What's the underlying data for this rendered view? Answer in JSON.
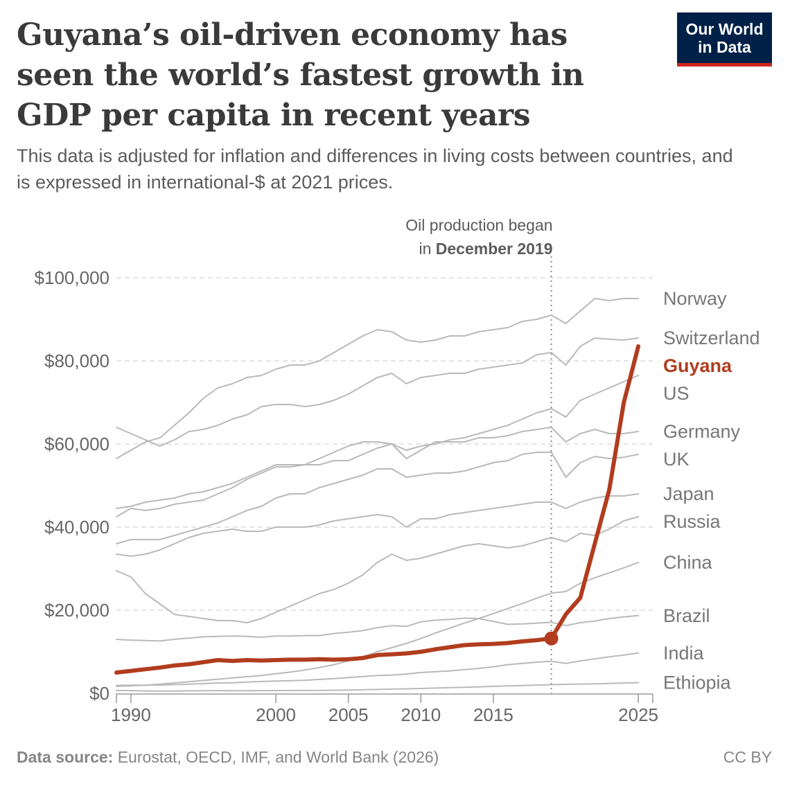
{
  "header": {
    "title": "Guyana’s oil-driven economy has seen the world’s fastest growth in GDP per capita in recent years",
    "subtitle": "This data is adjusted for inflation and differences in living costs between countries, and is expressed in international-$ at 2021 prices.",
    "logo_line1": "Our World",
    "logo_line2": "in Data"
  },
  "colors": {
    "highlight": "#b13d1e",
    "series": "#b9b9b9",
    "logo_bg": "#002147",
    "logo_bar": "#ce261e"
  },
  "footer": {
    "source_label": "Data source:",
    "source_text": "Eurostat, OECD, IMF, and World Bank (2026)",
    "license": "CC BY"
  },
  "chart_data": {
    "type": "line",
    "xlim": [
      1989,
      2026
    ],
    "ylim": [
      0,
      100000
    ],
    "x_ticks": [
      1990,
      2000,
      2005,
      2010,
      2015,
      2025
    ],
    "y_ticks": [
      0,
      20000,
      40000,
      60000,
      80000,
      100000
    ],
    "y_tick_labels": [
      "$0",
      "$20,000",
      "$40,000",
      "$60,000",
      "$80,000",
      "$100,000"
    ],
    "grid": "horizontal dashed",
    "annotation": {
      "x": 2019,
      "text_line1": "Oil production began",
      "text_line2_prefix": "in ",
      "text_line2_bold": "December 2019"
    },
    "highlight_series": "Guyana",
    "x": [
      1989,
      1990,
      1991,
      1992,
      1993,
      1994,
      1995,
      1996,
      1997,
      1998,
      1999,
      2000,
      2001,
      2002,
      2003,
      2004,
      2005,
      2006,
      2007,
      2008,
      2009,
      2010,
      2011,
      2012,
      2013,
      2014,
      2015,
      2016,
      2017,
      2018,
      2019,
      2020,
      2021,
      2022,
      2023,
      2024,
      2025
    ],
    "series": [
      {
        "name": "Norway",
        "values": [
          56500,
          58500,
          60500,
          61500,
          64500,
          67500,
          71000,
          73500,
          74500,
          76000,
          76500,
          78000,
          79000,
          79000,
          80000,
          82000,
          84000,
          86000,
          87500,
          87000,
          85000,
          84500,
          85000,
          86000,
          86000,
          87000,
          87500,
          88000,
          89500,
          90000,
          91000,
          89000,
          92000,
          95000,
          94500,
          95000,
          95000
        ]
      },
      {
        "name": "Switzerland",
        "values": [
          64000,
          62500,
          61000,
          59500,
          61000,
          63000,
          63500,
          64500,
          66000,
          67000,
          69000,
          69500,
          69500,
          69000,
          69500,
          70500,
          72000,
          74000,
          76000,
          77000,
          74500,
          76000,
          76500,
          77000,
          77000,
          78000,
          78500,
          79000,
          79500,
          81500,
          82000,
          79000,
          83500,
          85500,
          85200,
          85000,
          85500
        ]
      },
      {
        "name": "Guyana",
        "values": [
          5000,
          5400,
          5800,
          6200,
          6700,
          7000,
          7500,
          8000,
          7800,
          8000,
          7900,
          8000,
          8100,
          8100,
          8200,
          8100,
          8200,
          8500,
          9200,
          9400,
          9600,
          10000,
          10600,
          11100,
          11600,
          11800,
          11900,
          12100,
          12500,
          12800,
          13200,
          19000,
          23000,
          36000,
          49000,
          70000,
          83500
        ]
      },
      {
        "name": "US",
        "values": [
          42500,
          44500,
          44000,
          44500,
          45500,
          46000,
          46500,
          48000,
          49500,
          51500,
          53000,
          54500,
          54500,
          55000,
          56500,
          58000,
          59500,
          60500,
          60500,
          60000,
          58500,
          59500,
          60000,
          61000,
          61500,
          62500,
          63500,
          64500,
          66000,
          67500,
          68500,
          66500,
          70500,
          72000,
          73500,
          75000,
          76500
        ]
      },
      {
        "name": "Germany",
        "values": [
          44500,
          45000,
          46000,
          46500,
          47000,
          48000,
          48500,
          49500,
          50500,
          52000,
          53500,
          55000,
          55000,
          55000,
          55000,
          56000,
          56000,
          57500,
          59000,
          60000,
          56500,
          58500,
          60500,
          60500,
          60500,
          61500,
          61500,
          62000,
          63000,
          63500,
          64000,
          60500,
          62500,
          63500,
          62500,
          62500,
          63000
        ]
      },
      {
        "name": "UK",
        "values": [
          36000,
          37000,
          37000,
          37000,
          38000,
          39000,
          40000,
          41000,
          42500,
          44000,
          45000,
          47000,
          48000,
          48000,
          49500,
          50500,
          51500,
          52500,
          54000,
          54000,
          52000,
          52500,
          53000,
          53000,
          53500,
          54500,
          55500,
          56000,
          57500,
          58000,
          58000,
          52000,
          55500,
          57000,
          56500,
          56800,
          57500
        ]
      },
      {
        "name": "Japan",
        "values": [
          33500,
          33000,
          33500,
          34500,
          36000,
          37500,
          38500,
          39000,
          39500,
          39000,
          39000,
          40000,
          40000,
          40000,
          40500,
          41500,
          42000,
          42500,
          43000,
          42500,
          40000,
          42000,
          42000,
          43000,
          43500,
          44000,
          44500,
          45000,
          45500,
          46000,
          46000,
          44500,
          46000,
          47000,
          47500,
          47500,
          48000
        ]
      },
      {
        "name": "Russia",
        "values": [
          29500,
          28000,
          24000,
          21500,
          19000,
          18500,
          18000,
          17500,
          17500,
          17000,
          18000,
          19500,
          21000,
          22500,
          24000,
          25000,
          26500,
          28500,
          31500,
          33500,
          32000,
          32500,
          33500,
          34500,
          35500,
          36000,
          35500,
          35000,
          35500,
          36500,
          37500,
          36500,
          38500,
          38000,
          39500,
          41500,
          42500
        ]
      },
      {
        "name": "China",
        "values": [
          1700,
          1800,
          1950,
          2200,
          2500,
          2800,
          3100,
          3400,
          3700,
          4000,
          4300,
          4700,
          5100,
          5600,
          6200,
          6900,
          7800,
          8800,
          10000,
          11000,
          12000,
          13200,
          14500,
          15700,
          16900,
          18000,
          19200,
          20400,
          21600,
          22900,
          24100,
          24500,
          26500,
          27800,
          29000,
          30200,
          31500
        ]
      },
      {
        "name": "Brazil",
        "values": [
          13000,
          12800,
          12700,
          12600,
          13000,
          13300,
          13600,
          13700,
          13800,
          13700,
          13500,
          13800,
          13800,
          13900,
          13900,
          14400,
          14700,
          15100,
          15800,
          16300,
          16100,
          17200,
          17600,
          17800,
          18100,
          18000,
          17300,
          16600,
          16700,
          16900,
          17100,
          16300,
          17000,
          17400,
          18000,
          18400,
          18700
        ]
      },
      {
        "name": "India",
        "values": [
          1900,
          1950,
          1950,
          2000,
          2100,
          2200,
          2350,
          2500,
          2550,
          2700,
          2850,
          2950,
          3050,
          3150,
          3350,
          3550,
          3800,
          4050,
          4300,
          4400,
          4650,
          5000,
          5200,
          5400,
          5700,
          6000,
          6400,
          6900,
          7200,
          7500,
          7700,
          7200,
          7800,
          8300,
          8800,
          9200,
          9700
        ]
      },
      {
        "name": "Ethiopia",
        "values": [
          700,
          650,
          580,
          560,
          570,
          600,
          620,
          650,
          640,
          630,
          650,
          660,
          680,
          700,
          680,
          750,
          800,
          870,
          940,
          1010,
          1080,
          1170,
          1270,
          1360,
          1450,
          1560,
          1680,
          1780,
          1890,
          1990,
          2090,
          2160,
          2240,
          2290,
          2380,
          2480,
          2580
        ]
      }
    ],
    "series_labels": [
      "Norway",
      "Switzerland",
      "Guyana",
      "US",
      "Germany",
      "UK",
      "Japan",
      "Russia",
      "China",
      "Brazil",
      "India",
      "Ethiopia"
    ]
  }
}
